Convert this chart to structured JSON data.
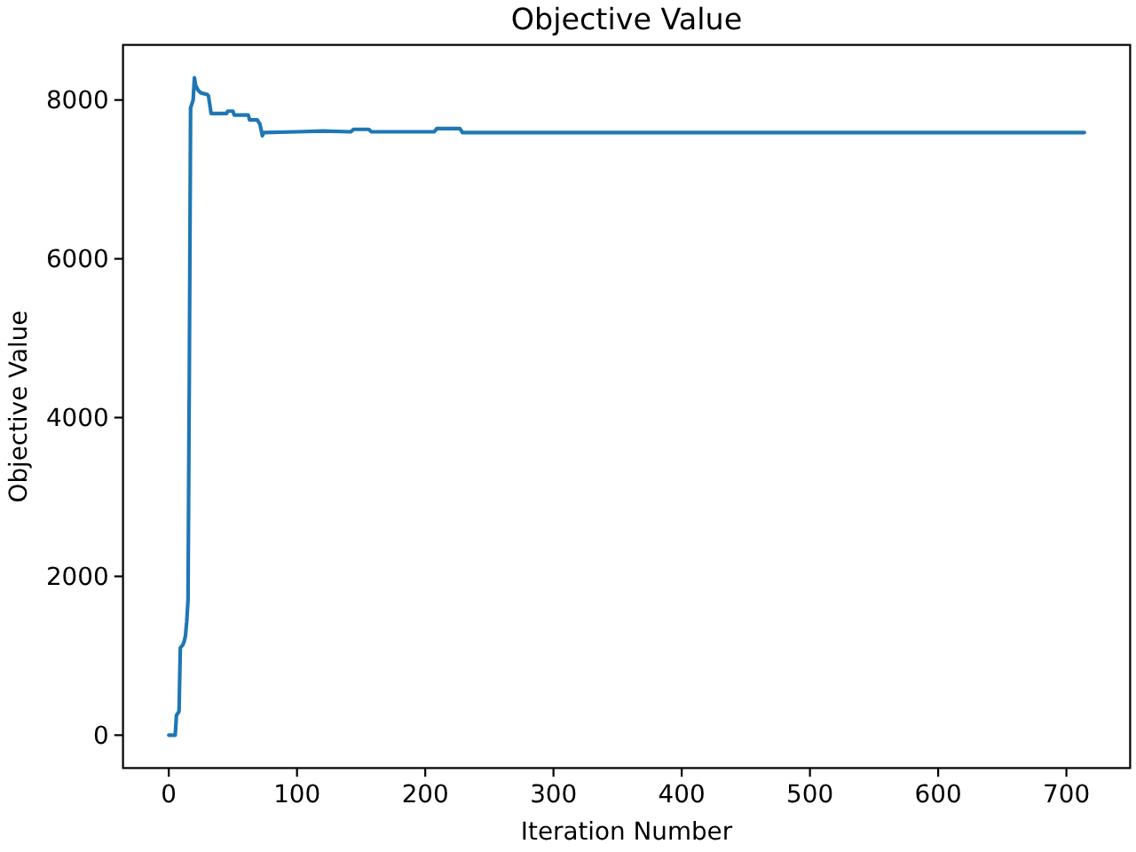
{
  "chart_data": {
    "type": "line",
    "title": "Objective Value",
    "xlabel": "Iteration Number",
    "ylabel": "Objective Value",
    "x": [
      0,
      5,
      6,
      8,
      9,
      11,
      12,
      13,
      14,
      15,
      16,
      17,
      18,
      19,
      20,
      21,
      23,
      25,
      30,
      31,
      33,
      45,
      46,
      50,
      51,
      62,
      63,
      69,
      71,
      73,
      74,
      100,
      120,
      142,
      144,
      156,
      158,
      207,
      209,
      227,
      229,
      714
    ],
    "series": [
      {
        "color": "#1f77b4",
        "values": [
          0,
          0,
          250,
          300,
          1100,
          1140,
          1180,
          1250,
          1430,
          1700,
          4500,
          7900,
          7950,
          8000,
          8280,
          8180,
          8120,
          8090,
          8070,
          8050,
          7830,
          7830,
          7860,
          7860,
          7810,
          7810,
          7750,
          7750,
          7700,
          7550,
          7590,
          7600,
          7610,
          7600,
          7630,
          7630,
          7600,
          7600,
          7640,
          7640,
          7590,
          7590
        ]
      }
    ],
    "xlim": [
      -35.7,
      749.7
    ],
    "ylim": [
      -414,
      8694
    ],
    "xticks": [
      0,
      100,
      200,
      300,
      400,
      500,
      600,
      700
    ],
    "yticks": [
      0,
      2000,
      4000,
      6000,
      8000
    ]
  }
}
